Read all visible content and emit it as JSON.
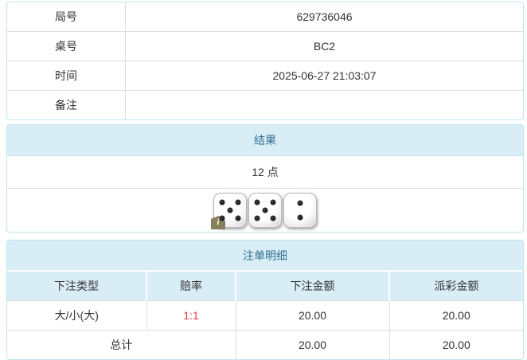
{
  "info_table": {
    "rows": [
      {
        "label": "局号",
        "value": "629736046"
      },
      {
        "label": "桌号",
        "value": "BC2"
      },
      {
        "label": "时间",
        "value": "2025-06-27 21:03:07"
      },
      {
        "label": "备注",
        "value": ""
      }
    ]
  },
  "result_panel": {
    "title": "结果",
    "points": "12 点",
    "dice": [
      5,
      5,
      2
    ],
    "info_badge_label": "i"
  },
  "bets_panel": {
    "title": "注单明细",
    "columns": [
      "下注类型",
      "赔率",
      "下注金额",
      "派彩金额"
    ],
    "rows": [
      {
        "bet_type": "大/小(大)",
        "odds": "1:1",
        "bet_amount": "20.00",
        "payout_amount": "20.00"
      }
    ],
    "total": {
      "label": "总计",
      "bet_amount": "20.00",
      "payout_amount": "20.00"
    }
  },
  "colors": {
    "panel_border": "#bce8f1",
    "header_bg": "#d9edf7",
    "header_text": "#31708f",
    "cell_border": "#dddddd",
    "odds_red": "#e4393c"
  }
}
